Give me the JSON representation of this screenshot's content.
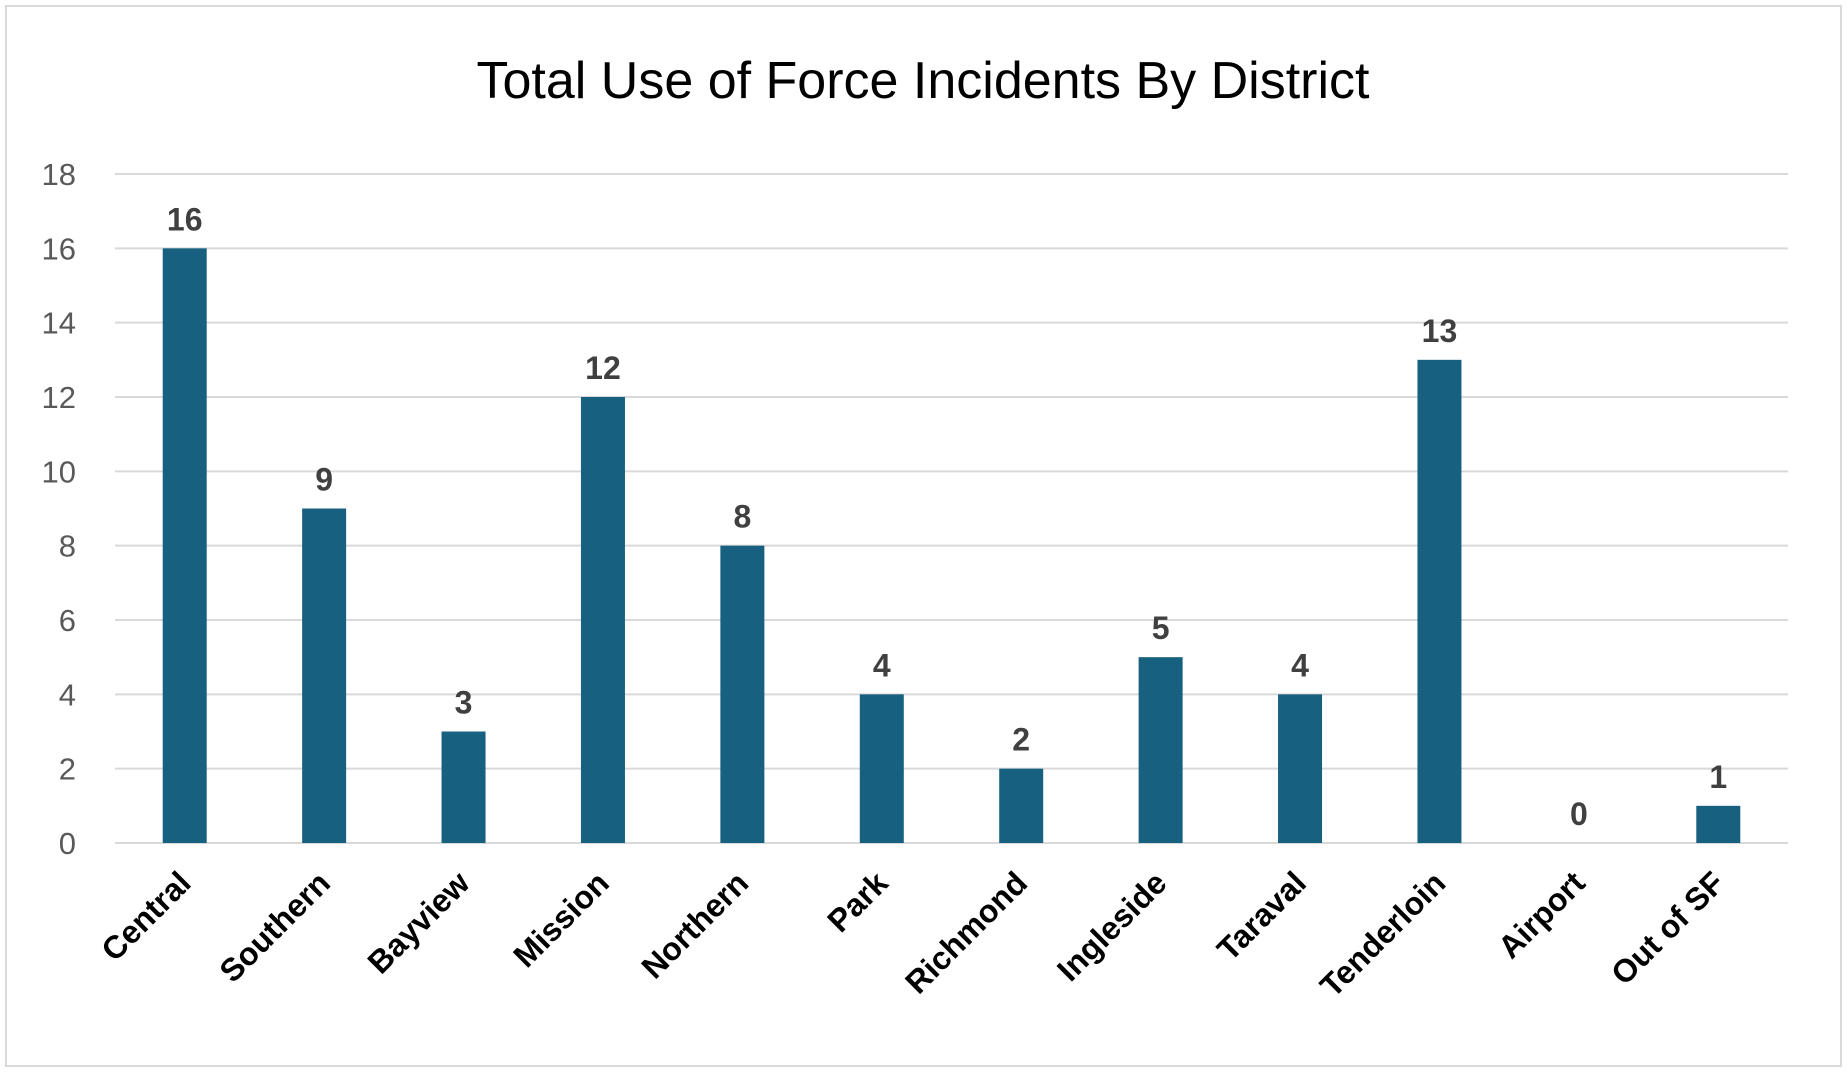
{
  "chart_data": {
    "type": "bar",
    "title": "Total Use of Force Incidents By District",
    "xlabel": "",
    "ylabel": "",
    "categories": [
      "Central",
      "Southern",
      "Bayview",
      "Mission",
      "Northern",
      "Park",
      "Richmond",
      "Ingleside",
      "Taraval",
      "Tenderloin",
      "Airport",
      "Out of SF"
    ],
    "values": [
      16,
      9,
      3,
      12,
      8,
      4,
      2,
      5,
      4,
      13,
      0,
      1
    ],
    "ylim": [
      0,
      18
    ],
    "yticks": [
      0,
      2,
      4,
      6,
      8,
      10,
      12,
      14,
      16,
      18
    ],
    "grid": true,
    "data_labels": true,
    "bar_color": "#17607F"
  }
}
